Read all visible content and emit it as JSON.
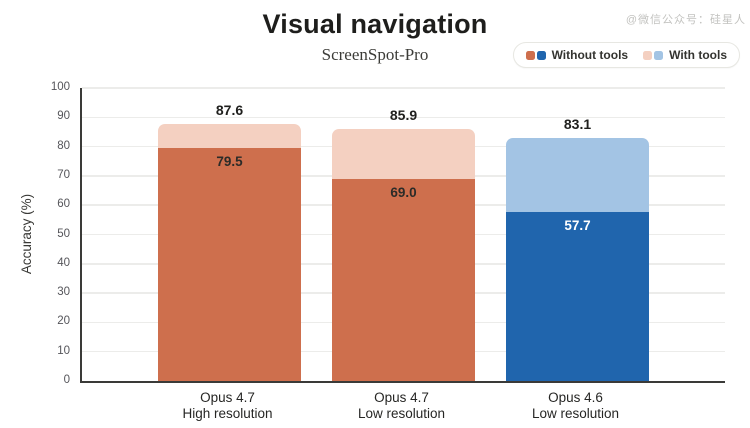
{
  "header": {
    "title": "Visual navigation",
    "subtitle": "ScreenSpot-Pro",
    "watermark": "@微信公众号：硅星人"
  },
  "legend": {
    "items": [
      {
        "label": "Without tools",
        "swatches": [
          "#CE6F4D",
          "#2065AD"
        ]
      },
      {
        "label": "With tools",
        "swatches": [
          "#F4D0C1",
          "#A3C4E4"
        ]
      }
    ]
  },
  "chart_data": {
    "type": "bar",
    "title": "Visual navigation",
    "subtitle": "ScreenSpot-Pro",
    "ylabel": "Accuracy (%)",
    "ylim": [
      0,
      100
    ],
    "ytick_step": 10,
    "grid": "horizontal",
    "legend_position": "top-right",
    "categories": [
      {
        "line1": "Opus 4.7",
        "line2": "High resolution"
      },
      {
        "line1": "Opus 4.7",
        "line2": "Low resolution"
      },
      {
        "line1": "Opus 4.6",
        "line2": "Low resolution"
      }
    ],
    "series": [
      {
        "name": "Without tools",
        "values": [
          79.5,
          69.0,
          57.7
        ]
      },
      {
        "name": "With tools",
        "values": [
          87.6,
          85.9,
          83.1
        ]
      }
    ],
    "category_colors": [
      {
        "main": "#CE6F4D",
        "light": "#F4D0C1",
        "inner_label": "#2b2b28"
      },
      {
        "main": "#CE6F4D",
        "light": "#F4D0C1",
        "inner_label": "#2b2b28"
      },
      {
        "main": "#2065AD",
        "light": "#A3C4E4",
        "inner_label": "#ffffff"
      }
    ]
  }
}
